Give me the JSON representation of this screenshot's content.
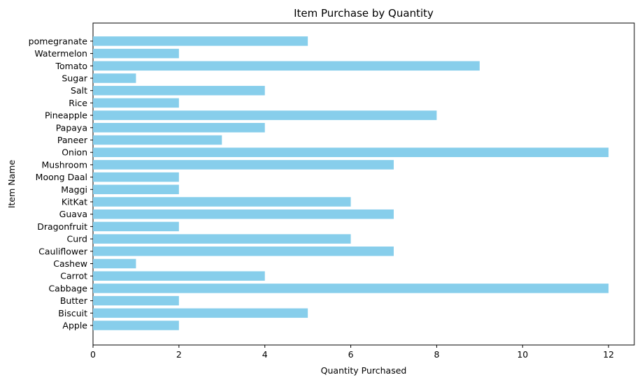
{
  "chart_data": {
    "type": "bar",
    "orientation": "horizontal",
    "title": "Item Purchase by Quantity",
    "xlabel": "Quantity Purchased",
    "ylabel": "Item Name",
    "xlim": [
      0,
      12.6
    ],
    "xticks": [
      0,
      2,
      4,
      6,
      8,
      10,
      12
    ],
    "grid": false,
    "bar_color": "#87CEEB",
    "categories": [
      "Apple",
      "Biscuit",
      "Butter",
      "Cabbage",
      "Carrot",
      "Cashew",
      "Cauliflower",
      "Curd",
      "Dragonfruit",
      "Guava",
      "KitKat",
      "Maggi",
      "Moong Daal",
      "Mushroom",
      "Onion",
      "Paneer",
      "Papaya",
      "Pineapple",
      "Rice",
      "Salt",
      "Sugar",
      "Tomato",
      "Watermelon",
      "pomegranate"
    ],
    "values": [
      2,
      5,
      2,
      12,
      4,
      1,
      7,
      6,
      2,
      7,
      6,
      2,
      2,
      7,
      12,
      3,
      4,
      8,
      2,
      4,
      1,
      9,
      2,
      5
    ]
  }
}
